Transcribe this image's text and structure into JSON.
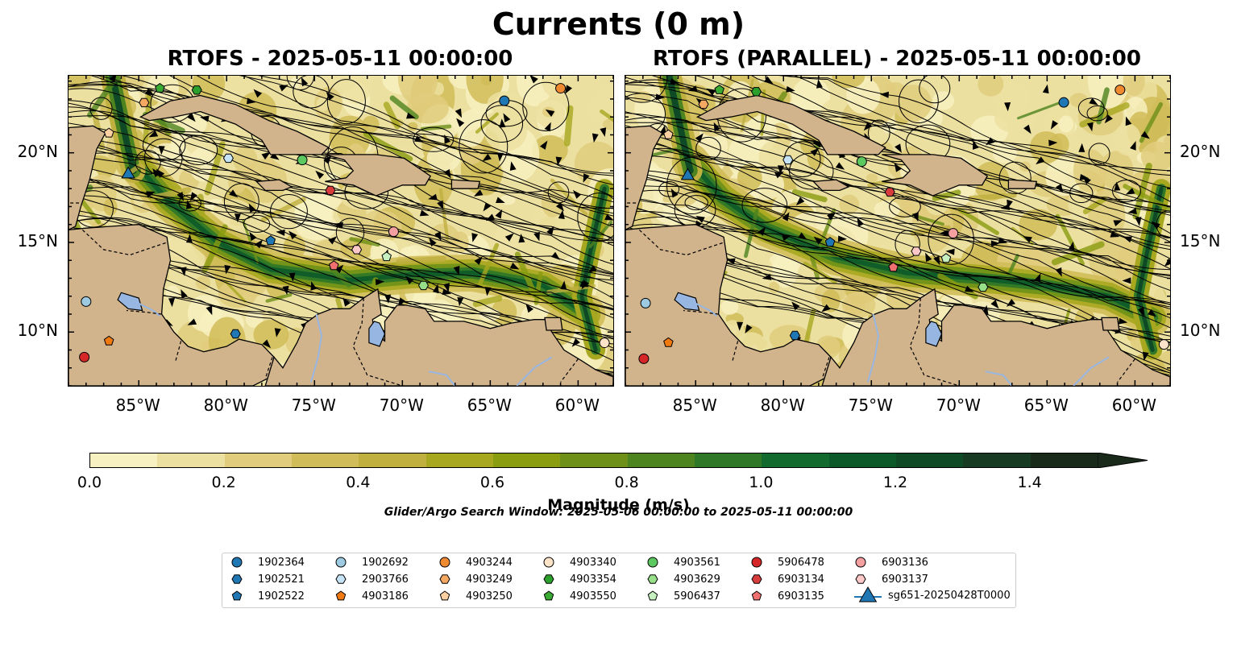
{
  "figure": {
    "title": "Currents (0 m)",
    "panels": [
      {
        "title": "RTOFS - 2025-05-11 00:00:00"
      },
      {
        "title": "RTOFS (PARALLEL) - 2025-05-11 00:00:00"
      }
    ],
    "lon_ticks": [
      "85°W",
      "80°W",
      "75°W",
      "70°W",
      "65°W",
      "60°W"
    ],
    "lat_ticks": [
      "20°N",
      "15°N",
      "10°N"
    ],
    "search_window": "Glider/Argo Search Window: 2025-05-06 00:00:00 to 2025-05-11 00:00:00"
  },
  "colorbar": {
    "label": "Magnitude (m/s)",
    "ticks": [
      "0.0",
      "0.2",
      "0.4",
      "0.6",
      "0.8",
      "1.0",
      "1.2",
      "1.4"
    ],
    "colors": [
      "#f7f0c0",
      "#ece0a0",
      "#e0cc7c",
      "#d0bc58",
      "#c0b040",
      "#a8a820",
      "#8a9c10",
      "#6e9018",
      "#4e8420",
      "#2e7828",
      "#126a2e",
      "#0c5a2a",
      "#0e4a26",
      "#173a22",
      "#1a2a1a"
    ]
  },
  "legend": {
    "items": [
      {
        "label": "1902364",
        "marker": "circle",
        "color": "#1f77b4"
      },
      {
        "label": "1902521",
        "marker": "hexagon",
        "color": "#1f77b4"
      },
      {
        "label": "1902522",
        "marker": "pentagon",
        "color": "#1f77b4"
      },
      {
        "label": "1902692",
        "marker": "circle",
        "color": "#9ecae1"
      },
      {
        "label": "2903766",
        "marker": "hexagon",
        "color": "#c6e4f5"
      },
      {
        "label": "4903186",
        "marker": "pentagon",
        "color": "#f07a10"
      },
      {
        "label": "4903244",
        "marker": "circle",
        "color": "#f08a30"
      },
      {
        "label": "4903249",
        "marker": "hexagon",
        "color": "#f5a862"
      },
      {
        "label": "4903250",
        "marker": "pentagon",
        "color": "#fdd0a2"
      },
      {
        "label": "4903340",
        "marker": "circle",
        "color": "#fde4c8"
      },
      {
        "label": "4903354",
        "marker": "hexagon",
        "color": "#2ca02c"
      },
      {
        "label": "4903550",
        "marker": "pentagon",
        "color": "#3aaa32"
      },
      {
        "label": "4903561",
        "marker": "circle",
        "color": "#5cc860"
      },
      {
        "label": "4903629",
        "marker": "hexagon",
        "color": "#98df8a"
      },
      {
        "label": "5906437",
        "marker": "pentagon",
        "color": "#c7f0c0"
      },
      {
        "label": "5906478",
        "marker": "circle",
        "color": "#d62728"
      },
      {
        "label": "6903134",
        "marker": "hexagon",
        "color": "#d83c3c"
      },
      {
        "label": "6903135",
        "marker": "pentagon",
        "color": "#f07070"
      },
      {
        "label": "6903136",
        "marker": "circle",
        "color": "#f4a0a0"
      },
      {
        "label": "6903137",
        "marker": "hexagon",
        "color": "#fcc8c8"
      },
      {
        "label": "sg651-20250428T0000",
        "marker": "triangle",
        "color": "#1f77b4"
      }
    ]
  },
  "chart_data": {
    "type": "map",
    "variable": "surface current magnitude",
    "units": "m/s",
    "colorbar_range": [
      0.0,
      1.5
    ],
    "extent_lon": [
      -89,
      -58
    ],
    "extent_lat": [
      7,
      24.3
    ],
    "platforms": [
      {
        "id": "1902364",
        "lon": -64.2,
        "lat": 22.9
      },
      {
        "id": "1902521",
        "lon": -79.5,
        "lat": 9.9
      },
      {
        "id": "1902522",
        "lon": -77.5,
        "lat": 15.1
      },
      {
        "id": "1902692",
        "lon": -88.0,
        "lat": 11.7
      },
      {
        "id": "2903766",
        "lon": -79.9,
        "lat": 19.7
      },
      {
        "id": "4903186",
        "lon": -86.7,
        "lat": 9.5
      },
      {
        "id": "4903244",
        "lon": -61.0,
        "lat": 23.6
      },
      {
        "id": "4903249",
        "lon": -84.7,
        "lat": 22.8
      },
      {
        "id": "4903250",
        "lon": -86.7,
        "lat": 21.1
      },
      {
        "id": "4903340",
        "lon": -58.5,
        "lat": 9.4
      },
      {
        "id": "4903354",
        "lon": -81.7,
        "lat": 23.5
      },
      {
        "id": "4903550",
        "lon": -83.8,
        "lat": 23.6
      },
      {
        "id": "4903561",
        "lon": -75.7,
        "lat": 19.6
      },
      {
        "id": "4903629",
        "lon": -68.8,
        "lat": 12.6
      },
      {
        "id": "5906437",
        "lon": -70.9,
        "lat": 14.2
      },
      {
        "id": "5906478",
        "lon": -88.1,
        "lat": 8.6
      },
      {
        "id": "6903134",
        "lon": -74.1,
        "lat": 17.9
      },
      {
        "id": "6903135",
        "lon": -73.9,
        "lat": 13.7
      },
      {
        "id": "6903136",
        "lon": -70.5,
        "lat": 15.6
      },
      {
        "id": "6903137",
        "lon": -72.6,
        "lat": 14.6
      },
      {
        "id": "sg651-20250428T0000",
        "lon": -85.6,
        "lat": 18.8
      }
    ]
  }
}
